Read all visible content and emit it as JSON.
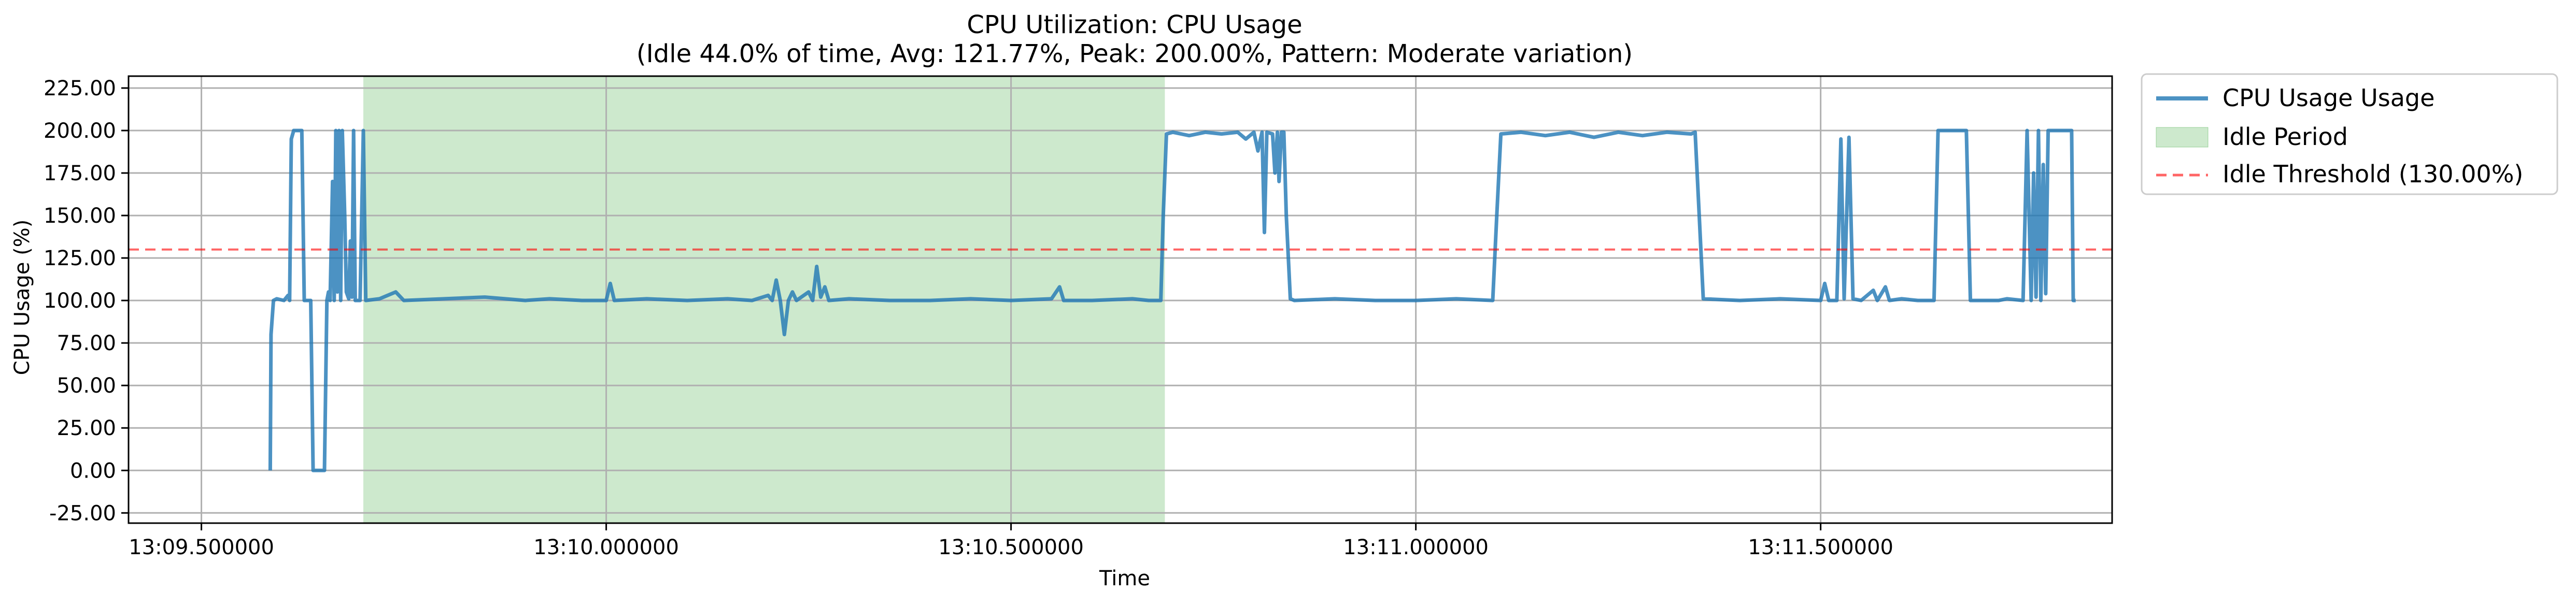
{
  "chart_data": {
    "type": "line",
    "title": "CPU Utilization: CPU Usage",
    "subtitle": "(Idle 44.0% of time, Avg: 121.77%, Peak: 200.00%, Pattern: Moderate variation)",
    "xlabel": "Time",
    "ylabel": "CPU Usage (%)",
    "xlim": [
      9.41,
      11.86
    ],
    "ylim": [
      -31.0,
      232.0
    ],
    "x_ticks": [
      9.5,
      10.0,
      10.5,
      11.0,
      11.5
    ],
    "x_tick_labels": [
      "13:09.500000",
      "13:10.000000",
      "13:10.500000",
      "13:11.000000",
      "13:11.500000"
    ],
    "y_ticks": [
      -25,
      0,
      25,
      50,
      75,
      100,
      125,
      150,
      175,
      200,
      225
    ],
    "y_tick_labels": [
      "-25.00",
      "0.00",
      "25.00",
      "50.00",
      "75.00",
      "100.00",
      "125.00",
      "150.00",
      "175.00",
      "200.00",
      "225.00"
    ],
    "grid": true,
    "legend_position": "outside top-right",
    "series": [
      {
        "name": "CPU Usage Usage",
        "color": "#1f77b4",
        "points": [
          [
            9.585,
            0
          ],
          [
            9.586,
            80
          ],
          [
            9.589,
            100
          ],
          [
            9.593,
            101
          ],
          [
            9.602,
            100
          ],
          [
            9.607,
            103
          ],
          [
            9.609,
            100
          ],
          [
            9.611,
            195
          ],
          [
            9.614,
            200
          ],
          [
            9.624,
            200
          ],
          [
            9.627,
            100
          ],
          [
            9.635,
            100
          ],
          [
            9.638,
            0
          ],
          [
            9.652,
            0
          ],
          [
            9.655,
            100
          ],
          [
            9.657,
            105
          ],
          [
            9.659,
            100
          ],
          [
            9.662,
            170
          ],
          [
            9.664,
            100
          ],
          [
            9.666,
            200
          ],
          [
            9.668,
            105
          ],
          [
            9.67,
            200
          ],
          [
            9.672,
            100
          ],
          [
            9.674,
            200
          ],
          [
            9.677,
            150
          ],
          [
            9.679,
            105
          ],
          [
            9.682,
            101
          ],
          [
            9.684,
            135
          ],
          [
            9.686,
            102
          ],
          [
            9.688,
            200
          ],
          [
            9.69,
            100
          ],
          [
            9.696,
            100
          ],
          [
            9.7,
            200
          ],
          [
            9.703,
            100
          ],
          [
            9.72,
            101
          ],
          [
            9.74,
            105
          ],
          [
            9.75,
            100
          ],
          [
            9.8,
            101
          ],
          [
            9.85,
            102
          ],
          [
            9.9,
            100
          ],
          [
            9.93,
            101
          ],
          [
            9.97,
            100
          ],
          [
            10.0,
            100
          ],
          [
            10.005,
            110
          ],
          [
            10.01,
            100
          ],
          [
            10.05,
            101
          ],
          [
            10.1,
            100
          ],
          [
            10.15,
            101
          ],
          [
            10.18,
            100
          ],
          [
            10.2,
            103
          ],
          [
            10.205,
            100
          ],
          [
            10.21,
            112
          ],
          [
            10.215,
            100
          ],
          [
            10.22,
            80
          ],
          [
            10.225,
            100
          ],
          [
            10.23,
            105
          ],
          [
            10.235,
            100
          ],
          [
            10.25,
            105
          ],
          [
            10.255,
            100
          ],
          [
            10.26,
            120
          ],
          [
            10.265,
            102
          ],
          [
            10.27,
            108
          ],
          [
            10.275,
            100
          ],
          [
            10.3,
            101
          ],
          [
            10.35,
            100
          ],
          [
            10.4,
            100
          ],
          [
            10.45,
            101
          ],
          [
            10.5,
            100
          ],
          [
            10.55,
            101
          ],
          [
            10.56,
            108
          ],
          [
            10.565,
            100
          ],
          [
            10.6,
            100
          ],
          [
            10.65,
            101
          ],
          [
            10.67,
            100
          ],
          [
            10.685,
            100
          ],
          [
            10.688,
            150
          ],
          [
            10.692,
            198
          ],
          [
            10.7,
            199
          ],
          [
            10.72,
            197
          ],
          [
            10.74,
            199
          ],
          [
            10.76,
            198
          ],
          [
            10.78,
            199
          ],
          [
            10.79,
            195
          ],
          [
            10.8,
            199
          ],
          [
            10.805,
            188
          ],
          [
            10.81,
            199
          ],
          [
            10.813,
            140
          ],
          [
            10.816,
            199
          ],
          [
            10.823,
            198
          ],
          [
            10.826,
            175
          ],
          [
            10.829,
            199
          ],
          [
            10.831,
            170
          ],
          [
            10.834,
            199
          ],
          [
            10.837,
            199
          ],
          [
            10.84,
            150
          ],
          [
            10.845,
            101
          ],
          [
            10.85,
            100
          ],
          [
            10.9,
            101
          ],
          [
            10.95,
            100
          ],
          [
            11.0,
            100
          ],
          [
            11.05,
            101
          ],
          [
            11.095,
            100
          ],
          [
            11.1,
            150
          ],
          [
            11.105,
            198
          ],
          [
            11.13,
            199
          ],
          [
            11.16,
            197
          ],
          [
            11.19,
            199
          ],
          [
            11.22,
            196
          ],
          [
            11.25,
            199
          ],
          [
            11.28,
            197
          ],
          [
            11.31,
            199
          ],
          [
            11.34,
            198
          ],
          [
            11.345,
            199
          ],
          [
            11.35,
            150
          ],
          [
            11.355,
            101
          ],
          [
            11.4,
            100
          ],
          [
            11.45,
            101
          ],
          [
            11.5,
            100
          ],
          [
            11.505,
            110
          ],
          [
            11.51,
            100
          ],
          [
            11.52,
            100
          ],
          [
            11.525,
            195
          ],
          [
            11.529,
            101
          ],
          [
            11.535,
            196
          ],
          [
            11.54,
            101
          ],
          [
            11.55,
            100
          ],
          [
            11.565,
            106
          ],
          [
            11.57,
            100
          ],
          [
            11.58,
            108
          ],
          [
            11.585,
            100
          ],
          [
            11.6,
            101
          ],
          [
            11.62,
            100
          ],
          [
            11.64,
            100
          ],
          [
            11.645,
            200
          ],
          [
            11.68,
            200
          ],
          [
            11.685,
            100
          ],
          [
            11.72,
            100
          ],
          [
            11.73,
            101
          ],
          [
            11.75,
            100
          ],
          [
            11.755,
            200
          ],
          [
            11.76,
            100
          ],
          [
            11.763,
            175
          ],
          [
            11.766,
            102
          ],
          [
            11.769,
            200
          ],
          [
            11.772,
            100
          ],
          [
            11.775,
            180
          ],
          [
            11.778,
            104
          ],
          [
            11.781,
            200
          ],
          [
            11.784,
            200
          ],
          [
            11.8,
            200
          ],
          [
            11.81,
            200
          ],
          [
            11.812,
            100
          ],
          [
            11.815,
            100
          ]
        ]
      }
    ],
    "idle_period": {
      "name": "Idle Period",
      "x_start": 9.7,
      "x_end": 10.69,
      "color": "#2ca02c"
    },
    "threshold": {
      "name": "Idle Threshold (130.00%)",
      "value": 130.0,
      "color": "#ff0000"
    }
  }
}
